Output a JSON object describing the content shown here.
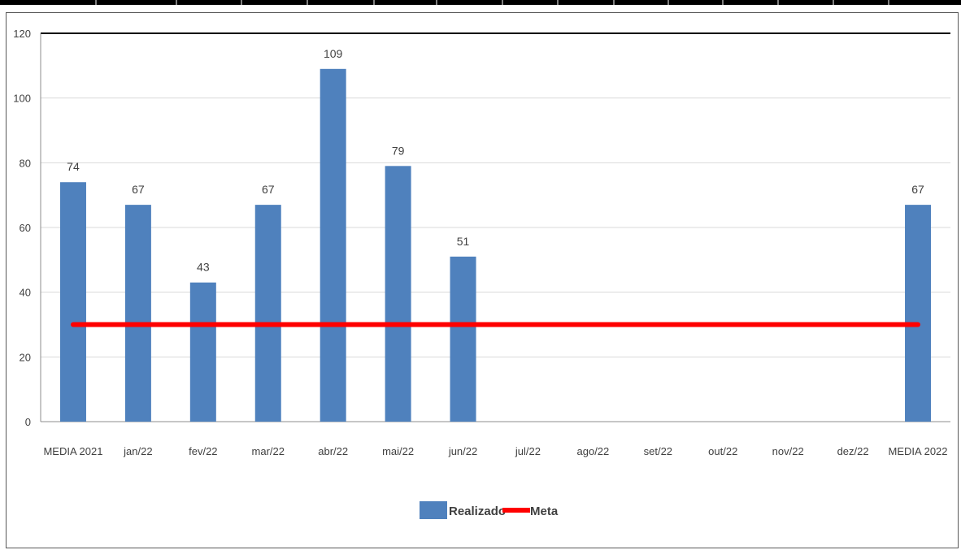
{
  "chart_data": {
    "type": "bar",
    "categories": [
      "MEDIA 2021",
      "jan/22",
      "fev/22",
      "mar/22",
      "abr/22",
      "mai/22",
      "jun/22",
      "jul/22",
      "ago/22",
      "set/22",
      "out/22",
      "nov/22",
      "dez/22",
      "MEDIA 2022"
    ],
    "series": [
      {
        "name": "Realizado",
        "type": "bar",
        "color": "#4F81BD",
        "values": [
          74,
          67,
          43,
          67,
          109,
          79,
          51,
          null,
          null,
          null,
          null,
          null,
          null,
          67
        ]
      },
      {
        "name": "Meta",
        "type": "line",
        "color": "#FF0000",
        "values": [
          30,
          30,
          30,
          30,
          30,
          30,
          30,
          30,
          30,
          30,
          30,
          30,
          30,
          30
        ]
      }
    ],
    "data_labels": [
      "74",
      "67",
      "43",
      "67",
      "109",
      "79",
      "51",
      "",
      "",
      "",
      "",
      "",
      "",
      "67"
    ],
    "y_ticks": [
      "0",
      "20",
      "40",
      "60",
      "80",
      "100",
      "120"
    ],
    "ylim": [
      0,
      120
    ],
    "grid": true,
    "legend_position": "bottom",
    "title": "",
    "xlabel": "",
    "ylabel": ""
  }
}
